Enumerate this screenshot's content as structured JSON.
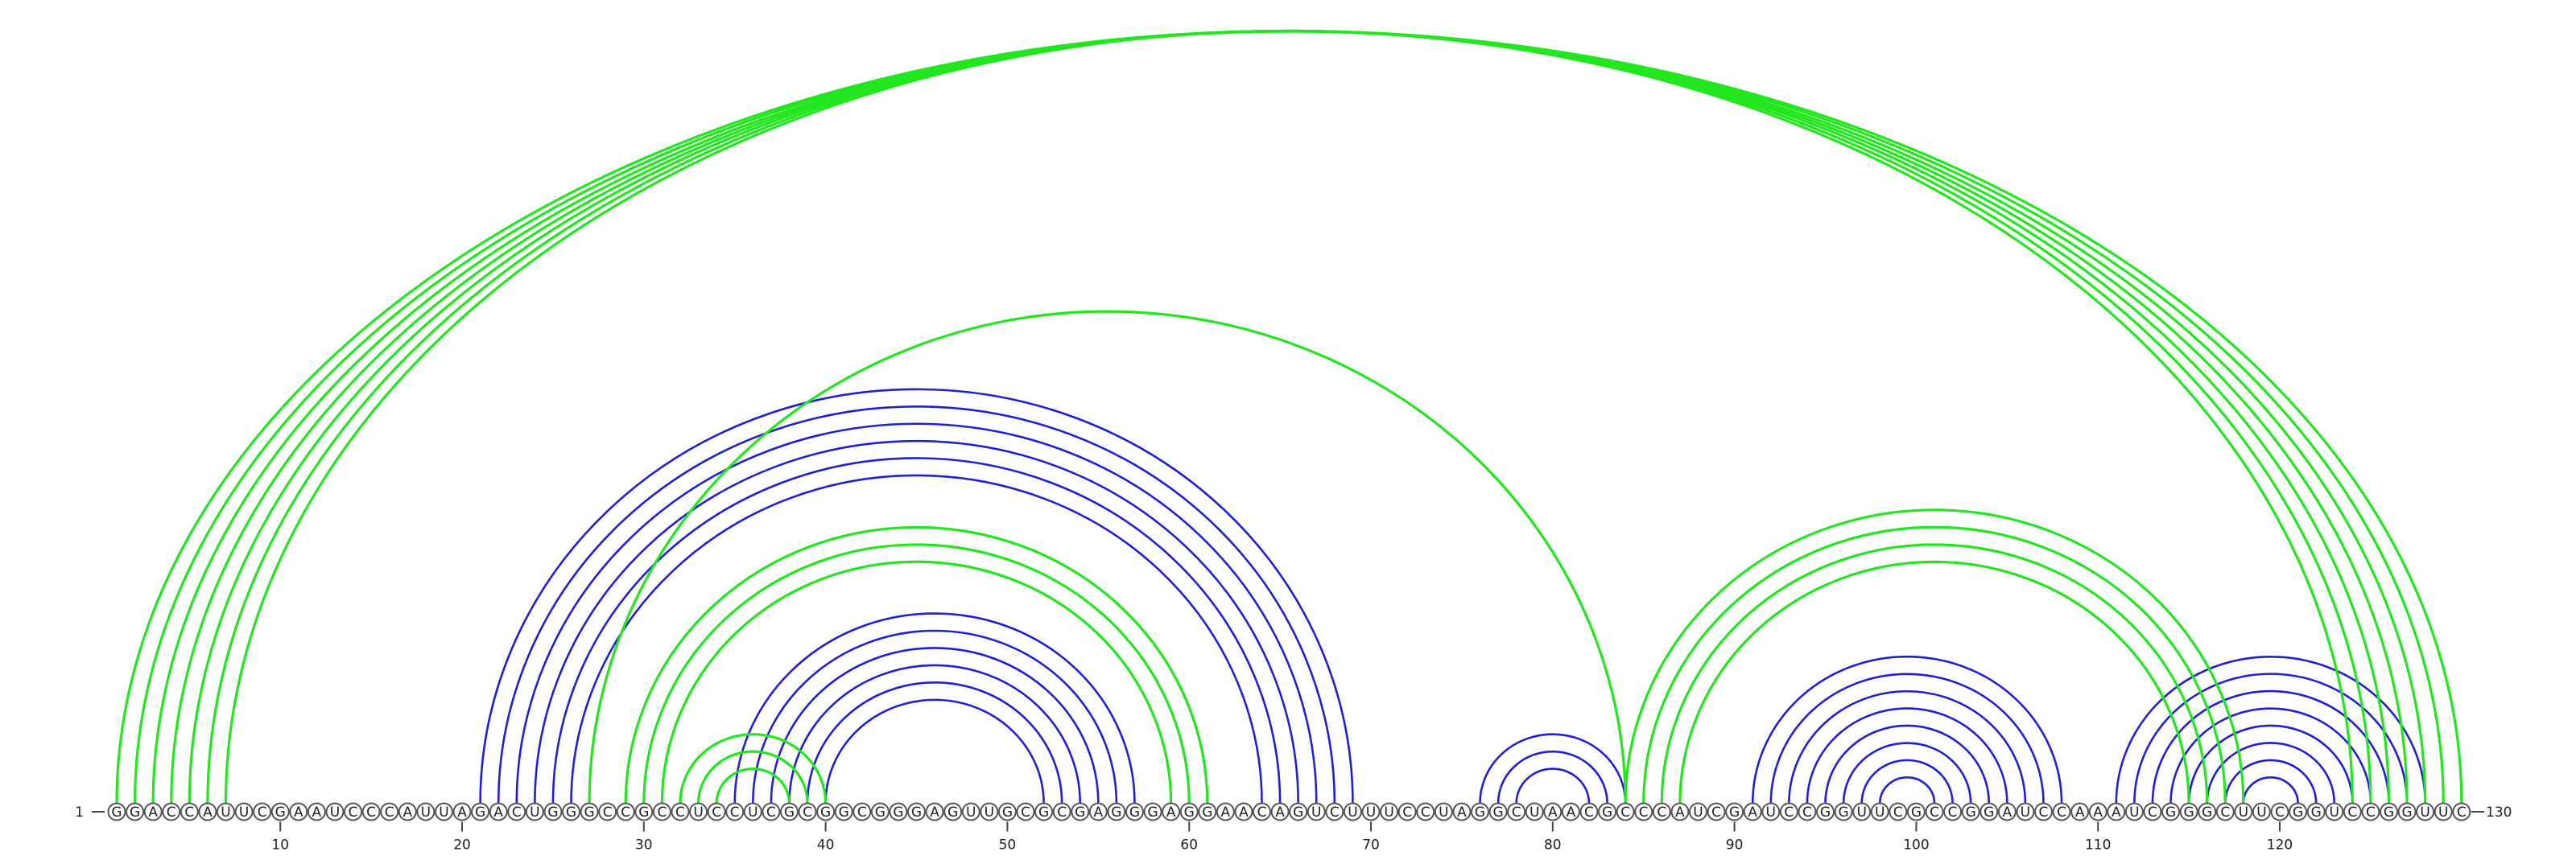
{
  "diagram": {
    "type": "rna-arc-diagram",
    "sequence": "GGACCAUUCGAAUCCCAUUAGACUGGGCCGCCUCCUCGCGGCGGGAGUUGCGCGAGGGAGGAACAGUCUUUCCUAGGCUAACGCCCAUCGAUCCGGUUCGCCGGAUCCAAAUCGGGCUUCGGUCCGGUUC",
    "start_label": "1",
    "end_label": "130",
    "ticks": [
      10,
      20,
      30,
      40,
      50,
      60,
      70,
      80,
      90,
      100,
      110,
      120
    ],
    "colors": {
      "helix_a": "#1f1fd6",
      "helix_b": "#22e61e",
      "backbone": "#444444"
    },
    "arcs": [
      {
        "i": 21,
        "j": 69,
        "color": "helix_a"
      },
      {
        "i": 22,
        "j": 68,
        "color": "helix_a"
      },
      {
        "i": 23,
        "j": 67,
        "color": "helix_a"
      },
      {
        "i": 24,
        "j": 66,
        "color": "helix_a"
      },
      {
        "i": 25,
        "j": 65,
        "color": "helix_a"
      },
      {
        "i": 26,
        "j": 64,
        "color": "helix_a"
      },
      {
        "i": 35,
        "j": 57,
        "color": "helix_a"
      },
      {
        "i": 36,
        "j": 56,
        "color": "helix_a"
      },
      {
        "i": 37,
        "j": 55,
        "color": "helix_a"
      },
      {
        "i": 38,
        "j": 54,
        "color": "helix_a"
      },
      {
        "i": 39,
        "j": 53,
        "color": "helix_a"
      },
      {
        "i": 40,
        "j": 52,
        "color": "helix_a"
      },
      {
        "i": 76,
        "j": 84,
        "color": "helix_a"
      },
      {
        "i": 77,
        "j": 83,
        "color": "helix_a"
      },
      {
        "i": 78,
        "j": 82,
        "color": "helix_a"
      },
      {
        "i": 91,
        "j": 108,
        "color": "helix_a"
      },
      {
        "i": 92,
        "j": 107,
        "color": "helix_a"
      },
      {
        "i": 93,
        "j": 106,
        "color": "helix_a"
      },
      {
        "i": 94,
        "j": 105,
        "color": "helix_a"
      },
      {
        "i": 95,
        "j": 104,
        "color": "helix_a"
      },
      {
        "i": 96,
        "j": 103,
        "color": "helix_a"
      },
      {
        "i": 97,
        "j": 102,
        "color": "helix_a"
      },
      {
        "i": 98,
        "j": 101,
        "color": "helix_a"
      },
      {
        "i": 111,
        "j": 128,
        "color": "helix_a"
      },
      {
        "i": 112,
        "j": 127,
        "color": "helix_a"
      },
      {
        "i": 113,
        "j": 126,
        "color": "helix_a"
      },
      {
        "i": 114,
        "j": 125,
        "color": "helix_a"
      },
      {
        "i": 115,
        "j": 124,
        "color": "helix_a"
      },
      {
        "i": 116,
        "j": 123,
        "color": "helix_a"
      },
      {
        "i": 117,
        "j": 122,
        "color": "helix_a"
      },
      {
        "i": 118,
        "j": 121,
        "color": "helix_a"
      },
      {
        "i": 1,
        "j": 130,
        "color": "helix_b"
      },
      {
        "i": 2,
        "j": 129,
        "color": "helix_b"
      },
      {
        "i": 3,
        "j": 128,
        "color": "helix_b"
      },
      {
        "i": 4,
        "j": 127,
        "color": "helix_b"
      },
      {
        "i": 5,
        "j": 126,
        "color": "helix_b"
      },
      {
        "i": 6,
        "j": 125,
        "color": "helix_b"
      },
      {
        "i": 7,
        "j": 124,
        "color": "helix_b"
      },
      {
        "i": 27,
        "j": 84,
        "color": "helix_b"
      },
      {
        "i": 29,
        "j": 61,
        "color": "helix_b"
      },
      {
        "i": 30,
        "j": 60,
        "color": "helix_b"
      },
      {
        "i": 31,
        "j": 59,
        "color": "helix_b"
      },
      {
        "i": 32,
        "j": 40,
        "color": "helix_b"
      },
      {
        "i": 33,
        "j": 39,
        "color": "helix_b"
      },
      {
        "i": 34,
        "j": 38,
        "color": "helix_b"
      },
      {
        "i": 84,
        "j": 118,
        "color": "helix_b"
      },
      {
        "i": 85,
        "j": 117,
        "color": "helix_b"
      },
      {
        "i": 86,
        "j": 116,
        "color": "helix_b"
      },
      {
        "i": 87,
        "j": 115,
        "color": "helix_b"
      }
    ]
  }
}
